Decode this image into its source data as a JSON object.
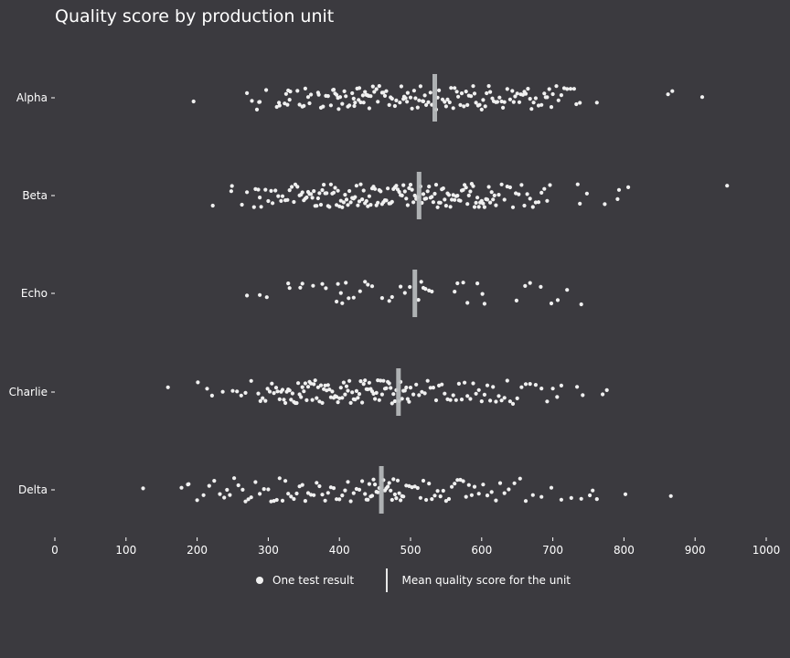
{
  "chart_data": {
    "type": "scatter",
    "title": "Quality score by production unit",
    "xlabel": "",
    "ylabel": "",
    "xlim": [
      0,
      1000
    ],
    "xticks": [
      0,
      100,
      200,
      300,
      400,
      500,
      600,
      700,
      800,
      900,
      1000
    ],
    "categories": [
      "Alpha",
      "Beta",
      "Echo",
      "Charlie",
      "Delta"
    ],
    "grid": false,
    "legend": {
      "placement": "bottom-center",
      "entries": [
        "One test result",
        "Mean quality score for the unit"
      ]
    },
    "colors": {
      "background": "#3b3a3f",
      "points": "#f0f0f0",
      "mean_marker": "#b9bcbd",
      "text": "#ffffff"
    },
    "series": [
      {
        "category": "Alpha",
        "mean": 534,
        "points": [
          195,
          270,
          277,
          284,
          287,
          288,
          297,
          312,
          315,
          316,
          323,
          325,
          327,
          328,
          330,
          331,
          341,
          344,
          348,
          350,
          352,
          356,
          358,
          360,
          370,
          371,
          374,
          377,
          381,
          384,
          388,
          391,
          392,
          394,
          396,
          398,
          399,
          401,
          404,
          407,
          409,
          412,
          414,
          418,
          420,
          421,
          422,
          425,
          427,
          428,
          430,
          433,
          434,
          436,
          438,
          440,
          441,
          442,
          444,
          447,
          449,
          452,
          454,
          456,
          460,
          462,
          464,
          466,
          470,
          472,
          474,
          478,
          480,
          485,
          487,
          490,
          491,
          493,
          495,
          496,
          500,
          502,
          505,
          507,
          510,
          512,
          514,
          517,
          518,
          520,
          522,
          525,
          528,
          530,
          536,
          538,
          540,
          545,
          548,
          550,
          552,
          555,
          557,
          560,
          562,
          565,
          567,
          570,
          572,
          575,
          578,
          580,
          582,
          585,
          588,
          590,
          592,
          595,
          597,
          600,
          602,
          605,
          607,
          610,
          612,
          615,
          617,
          620,
          622,
          625,
          628,
          630,
          632,
          636,
          640,
          643,
          645,
          647,
          650,
          653,
          655,
          658,
          660,
          662,
          665,
          668,
          670,
          673,
          676,
          680,
          684,
          688,
          690,
          692,
          695,
          698,
          700,
          705,
          708,
          712,
          716,
          720,
          725,
          730,
          733,
          738,
          762,
          862,
          868,
          910
        ]
      },
      {
        "category": "Beta",
        "mean": 512,
        "points": [
          222,
          248,
          249,
          263,
          270,
          280,
          282,
          286,
          288,
          290,
          296,
          300,
          304,
          306,
          310,
          314,
          318,
          320,
          324,
          327,
          330,
          333,
          336,
          338,
          341,
          344,
          346,
          348,
          350,
          352,
          354,
          356,
          358,
          360,
          362,
          364,
          366,
          368,
          370,
          372,
          374,
          376,
          378,
          380,
          382,
          384,
          386,
          388,
          390,
          392,
          394,
          396,
          398,
          400,
          402,
          404,
          406,
          408,
          410,
          412,
          414,
          416,
          418,
          420,
          422,
          424,
          426,
          428,
          430,
          432,
          434,
          436,
          438,
          440,
          442,
          444,
          446,
          448,
          450,
          452,
          454,
          456,
          458,
          460,
          462,
          464,
          466,
          468,
          470,
          472,
          474,
          476,
          478,
          480,
          482,
          484,
          486,
          488,
          490,
          492,
          494,
          496,
          498,
          500,
          502,
          504,
          506,
          508,
          510,
          514,
          516,
          518,
          520,
          522,
          524,
          526,
          528,
          530,
          532,
          534,
          536,
          538,
          540,
          542,
          544,
          546,
          548,
          550,
          552,
          554,
          556,
          558,
          560,
          562,
          564,
          566,
          568,
          570,
          572,
          574,
          576,
          578,
          580,
          582,
          584,
          586,
          588,
          590,
          592,
          594,
          596,
          598,
          600,
          602,
          604,
          606,
          608,
          610,
          612,
          614,
          616,
          618,
          620,
          624,
          628,
          632,
          636,
          640,
          644,
          648,
          652,
          656,
          660,
          664,
          668,
          672,
          676,
          680,
          684,
          688,
          692,
          696,
          735,
          738,
          748,
          773,
          791,
          793,
          806,
          945
        ]
      },
      {
        "category": "Echo",
        "mean": 506,
        "points": [
          270,
          288,
          298,
          328,
          330,
          345,
          348,
          363,
          376,
          381,
          396,
          398,
          402,
          404,
          409,
          413,
          420,
          429,
          436,
          440,
          446,
          460,
          470,
          474,
          486,
          492,
          499,
          511,
          515,
          518,
          521,
          526,
          530,
          562,
          566,
          574,
          580,
          594,
          601,
          604,
          649,
          661,
          668,
          683,
          698,
          707,
          720,
          740
        ]
      },
      {
        "category": "Charlie",
        "mean": 483,
        "points": [
          159,
          201,
          214,
          221,
          236,
          250,
          256,
          262,
          268,
          276,
          286,
          289,
          292,
          296,
          299,
          302,
          305,
          308,
          311,
          313,
          316,
          318,
          320,
          322,
          324,
          326,
          328,
          330,
          332,
          334,
          336,
          338,
          340,
          342,
          344,
          346,
          348,
          350,
          352,
          354,
          356,
          358,
          360,
          362,
          364,
          366,
          368,
          370,
          372,
          374,
          376,
          378,
          380,
          382,
          384,
          386,
          388,
          390,
          392,
          394,
          396,
          398,
          400,
          402,
          404,
          406,
          408,
          410,
          412,
          414,
          416,
          418,
          420,
          422,
          424,
          426,
          428,
          430,
          432,
          434,
          436,
          438,
          440,
          442,
          444,
          446,
          448,
          450,
          452,
          454,
          456,
          458,
          460,
          462,
          464,
          466,
          468,
          470,
          472,
          474,
          476,
          478,
          480,
          484,
          486,
          488,
          490,
          492,
          494,
          496,
          498,
          500,
          504,
          508,
          512,
          516,
          520,
          524,
          528,
          532,
          536,
          540,
          544,
          548,
          552,
          556,
          560,
          564,
          568,
          572,
          576,
          580,
          584,
          588,
          592,
          596,
          600,
          604,
          608,
          612,
          616,
          620,
          624,
          628,
          632,
          636,
          640,
          644,
          650,
          656,
          662,
          668,
          676,
          684,
          692,
          700,
          706,
          712,
          734,
          742,
          770,
          776
        ]
      },
      {
        "category": "Delta",
        "mean": 459,
        "points": [
          124,
          178,
          187,
          188,
          200,
          209,
          217,
          224,
          232,
          238,
          242,
          246,
          252,
          258,
          264,
          268,
          272,
          276,
          282,
          288,
          294,
          300,
          304,
          308,
          312,
          316,
          320,
          324,
          328,
          332,
          336,
          340,
          344,
          348,
          352,
          356,
          360,
          364,
          368,
          372,
          376,
          380,
          384,
          388,
          392,
          396,
          400,
          404,
          408,
          412,
          416,
          420,
          424,
          428,
          432,
          436,
          438,
          440,
          442,
          444,
          446,
          448,
          450,
          452,
          454,
          456,
          462,
          464,
          466,
          468,
          470,
          472,
          474,
          476,
          478,
          480,
          482,
          484,
          486,
          488,
          490,
          494,
          498,
          502,
          506,
          510,
          514,
          518,
          522,
          526,
          530,
          534,
          538,
          542,
          546,
          550,
          554,
          558,
          562,
          566,
          570,
          574,
          578,
          582,
          586,
          590,
          596,
          602,
          608,
          614,
          620,
          626,
          632,
          638,
          646,
          654,
          662,
          672,
          684,
          698,
          712,
          726,
          740,
          752,
          756,
          762,
          802,
          866
        ]
      }
    ]
  }
}
